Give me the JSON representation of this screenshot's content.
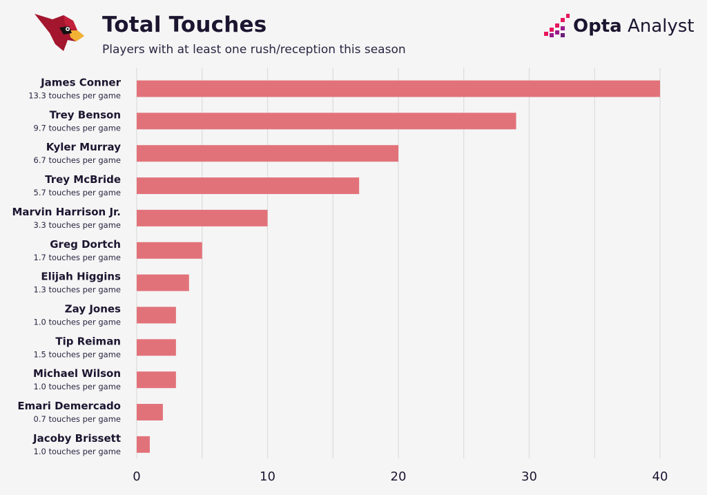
{
  "header": {
    "title": "Total Touches",
    "subtitle": "Players with at least one rush/reception this season"
  },
  "brand": {
    "name_bold": "Opta",
    "name_light": " Analyst"
  },
  "colors": {
    "bar": "#e2727a",
    "grid": "#dcdcdc",
    "background": "#f5f5f5",
    "team_primary": "#a3162e",
    "brand_accent": "#e8175d"
  },
  "chart_data": {
    "type": "bar",
    "orientation": "horizontal",
    "title": "Total Touches",
    "subtitle": "Players with at least one rush/reception this season",
    "xlabel": "",
    "ylabel": "",
    "xlim": [
      0,
      40
    ],
    "xticks": [
      0,
      10,
      20,
      30,
      40
    ],
    "grid": true,
    "categories": [
      "James Conner",
      "Trey Benson",
      "Kyler Murray",
      "Trey McBride",
      "Marvin Harrison Jr.",
      "Greg Dortch",
      "Elijah Higgins",
      "Zay Jones",
      "Tip Reiman",
      "Michael Wilson",
      "Emari Demercado",
      "Jacoby Brissett"
    ],
    "sublabels": [
      "13.3 touches per game",
      "9.7 touches per game",
      "6.7 touches per game",
      "5.7 touches per game",
      "3.3 touches per game",
      "1.7 touches per game",
      "1.3 touches per game",
      "1.0 touches per game",
      "1.5 touches per game",
      "1.0 touches per game",
      "0.7 touches per game",
      "1.0 touches per game"
    ],
    "values": [
      40,
      29,
      20,
      17,
      10,
      5,
      4,
      3,
      3,
      3,
      2,
      1
    ]
  }
}
